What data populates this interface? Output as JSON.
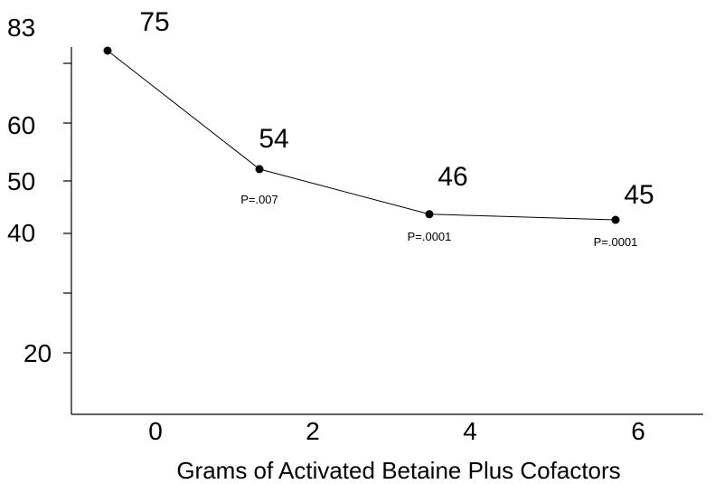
{
  "chart_data": {
    "type": "line",
    "title": "",
    "xlabel": "Grams of Activated Betaine Plus Cofactors",
    "ylabel": "",
    "x_tick_labels": [
      "0",
      "2",
      "4",
      "6"
    ],
    "y_tick_labels": [
      "83",
      "60",
      "50",
      "40",
      "20"
    ],
    "series": [
      {
        "values": [
          75,
          54,
          46,
          45
        ],
        "value_labels": [
          "75",
          "54",
          "46",
          "45"
        ],
        "p_values": [
          "",
          "P=.007",
          "P=.0001",
          "P=.0001"
        ]
      }
    ],
    "grid": false,
    "legend": "none",
    "colors": {
      "line": "#000000",
      "marker": "#000000"
    }
  }
}
